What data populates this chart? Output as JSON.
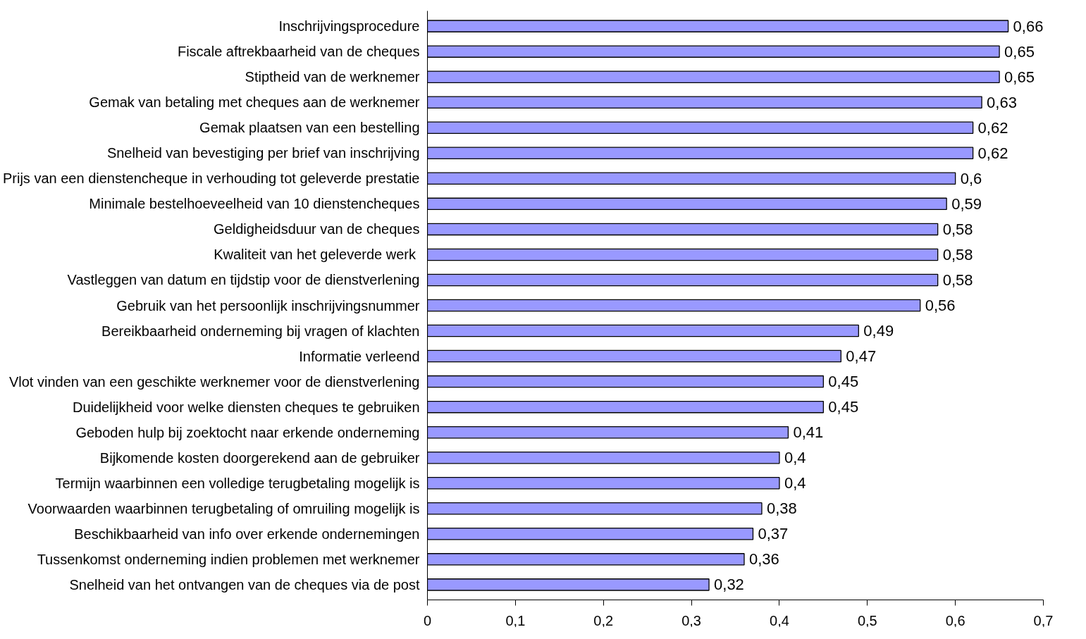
{
  "chart_data": {
    "type": "bar",
    "orientation": "horizontal",
    "categories": [
      "Inschrijvingsprocedure",
      "Fiscale aftrekbaarheid van de cheques",
      "Stiptheid van de werknemer",
      "Gemak van betaling met cheques aan de werknemer",
      "Gemak plaatsen van een bestelling",
      "Snelheid van bevestiging per brief van inschrijving",
      "Prijs van een dienstencheque in verhouding tot geleverde prestatie",
      "Minimale bestelhoeveelheid van 10 dienstencheques",
      "Geldigheidsduur van de cheques",
      "Kwaliteit  van het geleverde werk",
      "Vastleggen van datum en tijdstip voor de dienstverlening",
      "Gebruik van het persoonlijk inschrijvingsnummer",
      "Bereikbaarheid onderneming bij vragen of klachten",
      "Informatie verleend",
      "Vlot vinden van een geschikte werknemer voor de dienstverlening",
      "Duidelijkheid voor welke diensten cheques te gebruiken",
      "Geboden hulp bij zoektocht naar erkende onderneming",
      "Bijkomende kosten doorgerekend aan de gebruiker",
      "Termijn waarbinnen een volledige terugbetaling mogelijk is",
      "Voorwaarden waarbinnen terugbetaling of omruiling mogelijk is",
      "Beschikbaarheid van info over erkende ondernemingen",
      "Tussenkomst onderneming indien problemen met werknemer",
      "Snelheid van het ontvangen van de cheques via de post"
    ],
    "values": [
      0.66,
      0.65,
      0.65,
      0.63,
      0.62,
      0.62,
      0.6,
      0.59,
      0.58,
      0.58,
      0.58,
      0.56,
      0.49,
      0.47,
      0.45,
      0.45,
      0.41,
      0.4,
      0.4,
      0.38,
      0.37,
      0.36,
      0.32
    ],
    "value_labels": [
      "0,66",
      "0,65",
      "0,65",
      "0,63",
      "0,62",
      "0,62",
      "0,6",
      "0,59",
      "0,58",
      "0,58",
      "0,58",
      "0,56",
      "0,49",
      "0,47",
      "0,45",
      "0,45",
      "0,41",
      "0,4",
      "0,4",
      "0,38",
      "0,37",
      "0,36",
      "0,32"
    ],
    "color": "#9999ff",
    "xlim": [
      0,
      0.7
    ],
    "xticks": [
      0,
      {
        "value": 0.1,
        "label": "0,1"
      },
      {
        "value": 0.2,
        "label": "0,2"
      },
      {
        "value": 0.3,
        "label": "0,3"
      },
      {
        "value": 0.4,
        "label": "0,4"
      },
      {
        "value": 0.5,
        "label": "0,5"
      },
      {
        "value": 0.6,
        "label": "0,6"
      },
      {
        "value": 0.7,
        "label": "0,7"
      }
    ],
    "grid": false
  }
}
